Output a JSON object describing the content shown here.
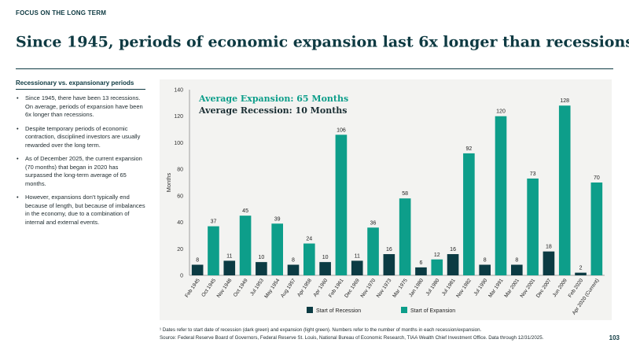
{
  "header": {
    "eyebrow": "FOCUS ON THE LONG TERM",
    "title": "Since 1945, periods of economic expansion last 6x longer than recessions",
    "title_superscript": "1"
  },
  "sidebar": {
    "heading": "Recessionary vs. expansionary periods",
    "bullets": [
      "Since 1945, there have been 13 recessions. On average, periods of expansion have been 6x longer than recessions.",
      "Despite temporary periods of economic contraction, disciplined investors are usually rewarded over the long term.",
      "As of December  2025, the current expansion (70 months) that began in 2020 has surpassed the long-term average of 65 months.",
      "However, expansions don't typically end because of length, but because of imbalances in the economy, due to a combination of internal and external events."
    ]
  },
  "colors": {
    "recession": "#0b3b43",
    "expansion": "#0d9e8a",
    "panel": "#f3f3f1",
    "axis": "#333333"
  },
  "chart_data": {
    "type": "bar",
    "ylabel": "Months",
    "ylim": [
      0,
      140
    ],
    "yticks": [
      0,
      20,
      40,
      60,
      80,
      100,
      120,
      140
    ],
    "annotations": [
      "Average Expansion: 65 Months",
      "Average Recession: 10 Months"
    ],
    "legend": [
      "Start of Recession",
      "Start of Expansion"
    ],
    "legend_position": "bottom",
    "categories": [
      "Feb 1945",
      "Oct 1945",
      "Nov 1948",
      "Oct 1949",
      "Jul 1953",
      "May 1954",
      "Aug 1957",
      "Apr 1958",
      "Apr 1960",
      "Feb 1961",
      "Dec 1969",
      "Nov 1970",
      "Nov 1973",
      "Mar 1975",
      "Jan 1980",
      "Jul 1980",
      "Jul 1981",
      "Nov 1982",
      "Jul 1990",
      "Mar 1991",
      "Mar 2001",
      "Nov 2001",
      "Dec 2007",
      "Jun 2009",
      "Feb 2020",
      "Apr 2020 (Current)"
    ],
    "series": [
      {
        "name": "Start of Recession",
        "values": [
          8,
          null,
          11,
          null,
          10,
          null,
          8,
          null,
          10,
          null,
          11,
          null,
          16,
          null,
          6,
          null,
          16,
          null,
          8,
          null,
          8,
          null,
          18,
          null,
          2,
          null
        ]
      },
      {
        "name": "Start of Expansion",
        "values": [
          null,
          37,
          null,
          45,
          null,
          39,
          null,
          24,
          null,
          106,
          null,
          36,
          null,
          58,
          null,
          12,
          null,
          92,
          null,
          120,
          null,
          73,
          null,
          128,
          null,
          70
        ]
      }
    ]
  },
  "footer": {
    "footnote": "¹ Dates refer to start date of recession (dark green) and expansion (light green). Numbers refer to the number of months in each recession/expansion.",
    "source": "Source: Federal Reserve Board of Governors, Federal Reserve St. Louis, National Bureau of Economic Research, TIAA Wealth Chief Investment Office. Data through 12/31/2025.",
    "page_number": "103"
  }
}
